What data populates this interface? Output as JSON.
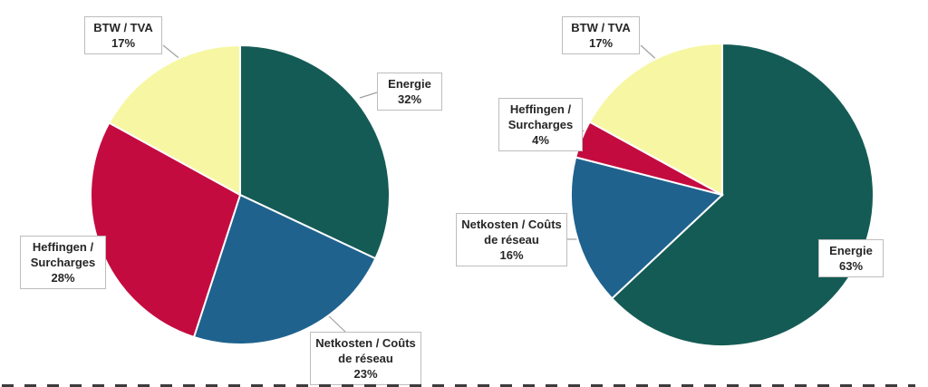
{
  "figure": {
    "background": "#ffffff",
    "leader_line_color": "#a0a0a0",
    "callout_border_color": "#bdbdbd"
  },
  "chart_data": [
    {
      "type": "pie",
      "title": "",
      "labels": [
        "Energie",
        "Netkosten / Coûts de réseau",
        "Heffingen / Surcharges",
        "BTW / TVA"
      ],
      "values": [
        32,
        23,
        28,
        17
      ],
      "unit": "%",
      "colors": [
        "#155b55",
        "#1f628e",
        "#c40b3f",
        "#f7f7a3"
      ],
      "slice_names": [
        "energie",
        "netkosten-couts-de-reseau",
        "heffingen-surcharges",
        "btw-tva"
      ],
      "start_angle_deg": 0,
      "direction": "clockwise",
      "legend": "callout-labels",
      "callouts": [
        {
          "text": "Energie\n32%"
        },
        {
          "text": "Netkosten / Coûts\nde réseau\n23%"
        },
        {
          "text": "Heffingen /\nSurcharges\n28%"
        },
        {
          "text": "BTW / TVA\n17%"
        }
      ]
    },
    {
      "type": "pie",
      "title": "",
      "labels": [
        "Energie",
        "Netkosten / Coûts de réseau",
        "Heffingen / Surcharges",
        "BTW / TVA"
      ],
      "values": [
        63,
        16,
        4,
        17
      ],
      "unit": "%",
      "colors": [
        "#155b55",
        "#1f628e",
        "#c40b3f",
        "#f7f7a3"
      ],
      "slice_names": [
        "energie",
        "netkosten-couts-de-reseau",
        "heffingen-surcharges",
        "btw-tva"
      ],
      "start_angle_deg": 0,
      "direction": "clockwise",
      "legend": "callout-labels",
      "callouts": [
        {
          "text": "Energie\n63%"
        },
        {
          "text": "Netkosten / Coûts\nde réseau\n16%"
        },
        {
          "text": "Heffingen /\nSurcharges\n4%"
        },
        {
          "text": "BTW / TVA\n17%"
        }
      ]
    }
  ]
}
